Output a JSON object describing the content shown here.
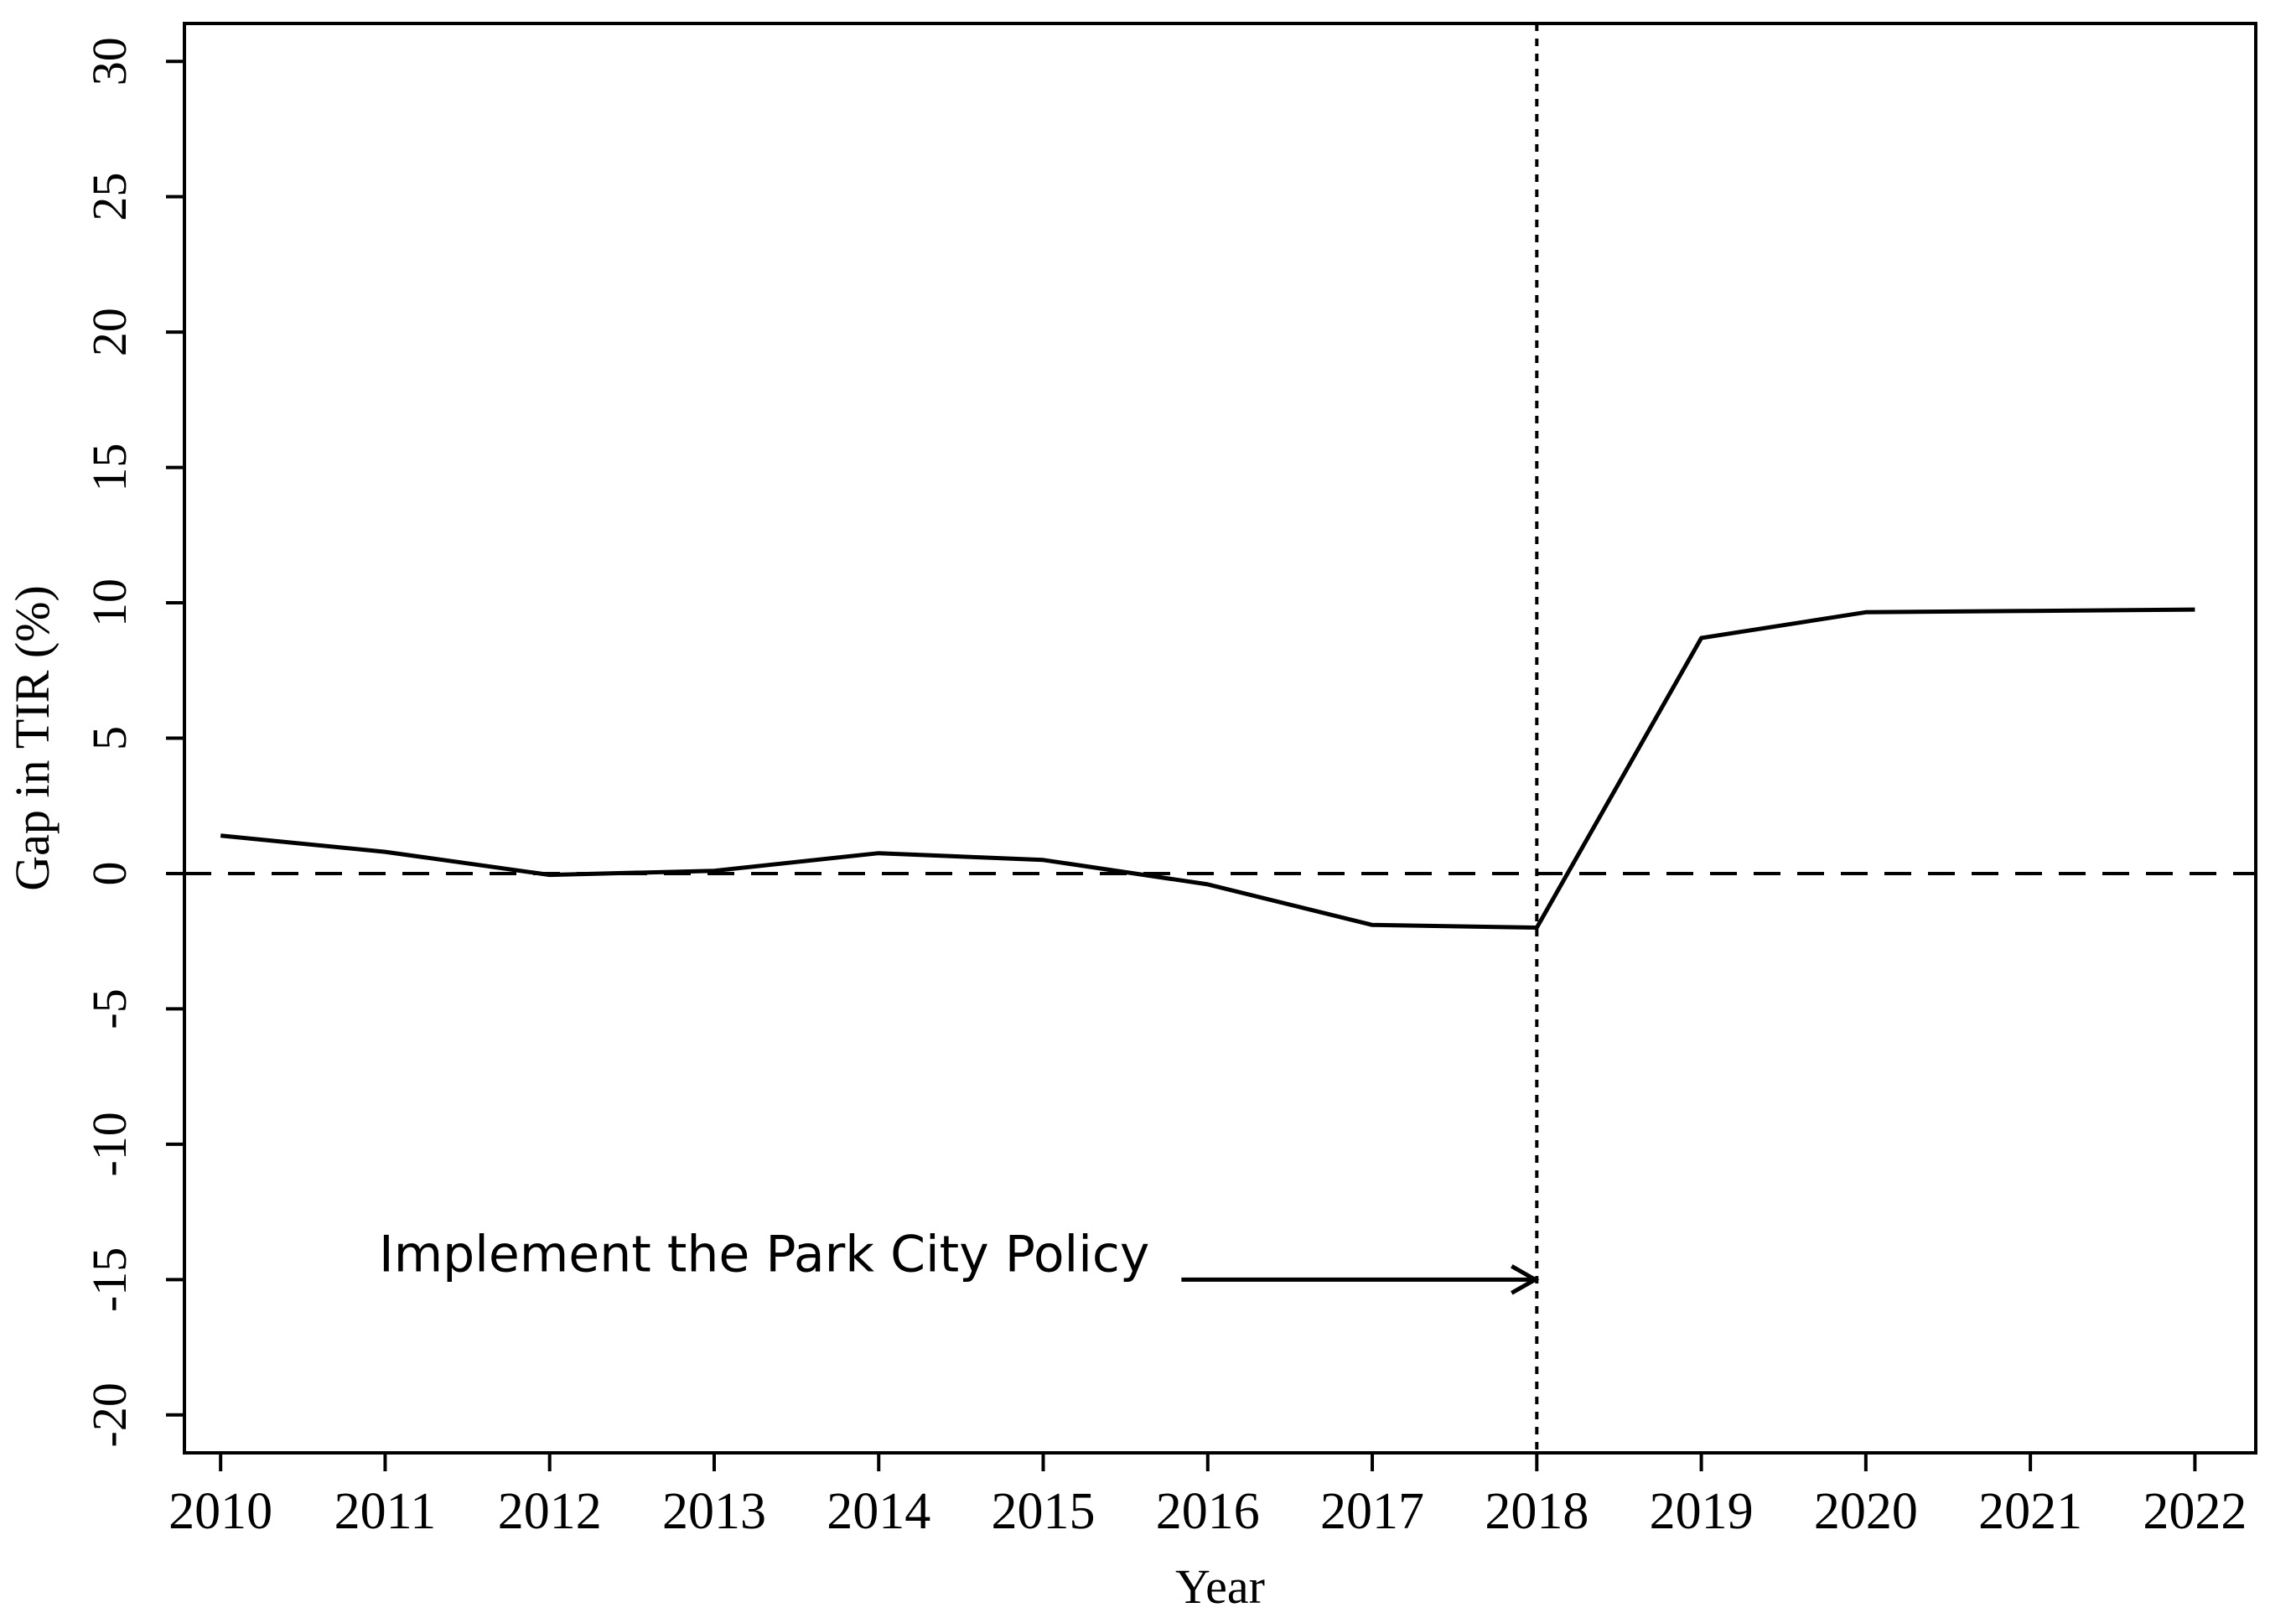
{
  "chart_data": {
    "type": "line",
    "title": "",
    "xlabel": "Year",
    "ylabel": "Gap in TIR (%)",
    "categories": [
      "2010",
      "2011",
      "2012",
      "2013",
      "2014",
      "2015",
      "2016",
      "2017",
      "2018",
      "2019",
      "2020",
      "2021",
      "2022"
    ],
    "x": [
      2010,
      2011,
      2012,
      2013,
      2014,
      2015,
      2016,
      2017,
      2018,
      2019,
      2020,
      2021,
      2022
    ],
    "xlim": [
      2009.78,
      2022.37
    ],
    "ylim": [
      -21.4,
      31.4
    ],
    "yticks": [
      -20,
      -15,
      -10,
      -5,
      0,
      5,
      10,
      15,
      20,
      25,
      30
    ],
    "series": [
      {
        "name": "Gap in TIR",
        "values": [
          1.4,
          0.8,
          -0.05,
          0.1,
          0.75,
          0.5,
          -0.4,
          -1.9,
          -2.0,
          8.7,
          9.65,
          9.7,
          9.75
        ]
      }
    ],
    "reference_lines": [
      {
        "orientation": "horizontal",
        "value": 0,
        "style": "dashed"
      },
      {
        "orientation": "vertical",
        "value": 2018,
        "style": "dotted"
      }
    ],
    "annotation": {
      "text": "Implement the Park City Policy",
      "arrow_from_x": 2015.84,
      "arrow_to_x": 2018,
      "y": -15
    },
    "grid": false,
    "legend": "none"
  }
}
